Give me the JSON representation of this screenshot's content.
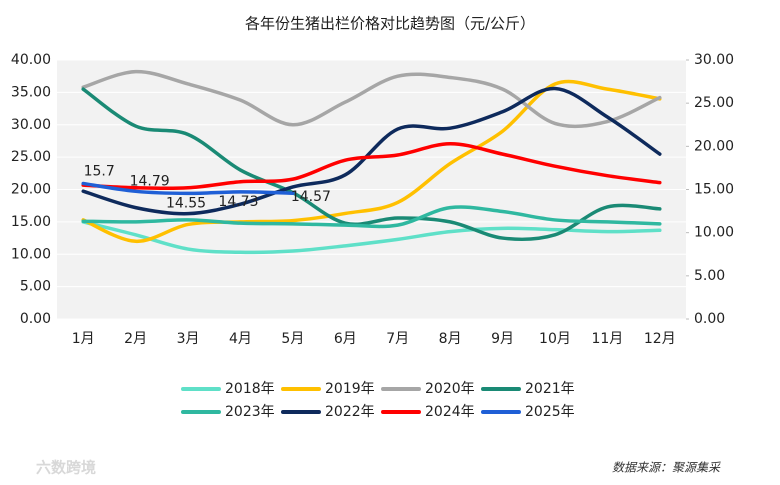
{
  "chart_data": {
    "type": "line",
    "title": "各年份生猪出栏价格对比趋势图（元/公斤）",
    "categories": [
      "1月",
      "2月",
      "3月",
      "4月",
      "5月",
      "6月",
      "7月",
      "8月",
      "9月",
      "10月",
      "11月",
      "12月"
    ],
    "ylim": [
      0,
      40
    ],
    "yticks": [
      {
        "value": 0,
        "label": "0.00"
      },
      {
        "value": 5,
        "label": "5.00"
      },
      {
        "value": 10,
        "label": "10.00"
      },
      {
        "value": 15,
        "label": "15.00"
      },
      {
        "value": 20,
        "label": "20.00"
      },
      {
        "value": 25,
        "label": "25.00"
      },
      {
        "value": 30,
        "label": "30.00"
      },
      {
        "value": 35,
        "label": "35.00"
      },
      {
        "value": 40,
        "label": "40.00"
      }
    ],
    "y2lim": [
      0,
      30
    ],
    "y2ticks": [
      {
        "value": 0,
        "label": "0.00"
      },
      {
        "value": 5,
        "label": "5.00"
      },
      {
        "value": 10,
        "label": "10.00"
      },
      {
        "value": 15,
        "label": "15.00"
      },
      {
        "value": 20,
        "label": "20.00"
      },
      {
        "value": 25,
        "label": "25.00"
      },
      {
        "value": 30,
        "label": "30.00"
      }
    ],
    "grid": true,
    "legend": "bottom",
    "series": [
      {
        "name": "2018年",
        "color": "#5fe0c8",
        "values": [
          15,
          13,
          10.8,
          10.3,
          10.5,
          11.3,
          12.3,
          13.5,
          14,
          13.8,
          13.5,
          13.7
        ]
      },
      {
        "name": "2019年",
        "color": "#ffc000",
        "values": [
          15.3,
          12,
          14.6,
          15,
          15.2,
          16.3,
          18,
          24,
          29,
          36.3,
          35.5,
          34
        ]
      },
      {
        "name": "2020年",
        "color": "#a6a6a6",
        "values": [
          35.8,
          38.2,
          36.3,
          33.8,
          30,
          33.5,
          37.5,
          37.3,
          35.5,
          30.2,
          30.5,
          34.2
        ]
      },
      {
        "name": "2021年",
        "color": "#1a8a75",
        "values": [
          35.5,
          29.8,
          28.5,
          23,
          19.5,
          14.8,
          15.6,
          15,
          12.5,
          13,
          17.3,
          17
        ]
      },
      {
        "name": "2023年",
        "color": "#2fb8a0",
        "values": [
          15.1,
          15,
          15.3,
          14.8,
          14.7,
          14.5,
          14.5,
          17.2,
          16.6,
          15.3,
          15,
          14.7
        ]
      },
      {
        "name": "2022年",
        "color": "#0e2a5c",
        "axis": "y2",
        "values": [
          14.8,
          12.9,
          12.2,
          13.3,
          15.3,
          16.7,
          22,
          22.1,
          24,
          26.7,
          23.4,
          19.1
        ]
      },
      {
        "name": "2024年",
        "color": "#ff0000",
        "axis": "y2",
        "values": [
          15.5,
          15.2,
          15.2,
          15.9,
          16.2,
          18.4,
          19,
          20.3,
          19.1,
          17.7,
          16.6,
          15.8
        ]
      },
      {
        "name": "2025年",
        "color": "#1f5fd6",
        "axis": "y2",
        "show_labels": true,
        "values": [
          15.7,
          14.79,
          14.55,
          14.73,
          14.57,
          null,
          null,
          null,
          null,
          null,
          null,
          null
        ]
      }
    ],
    "source": "数据来源：聚源集采",
    "watermark": "六数跨境"
  }
}
